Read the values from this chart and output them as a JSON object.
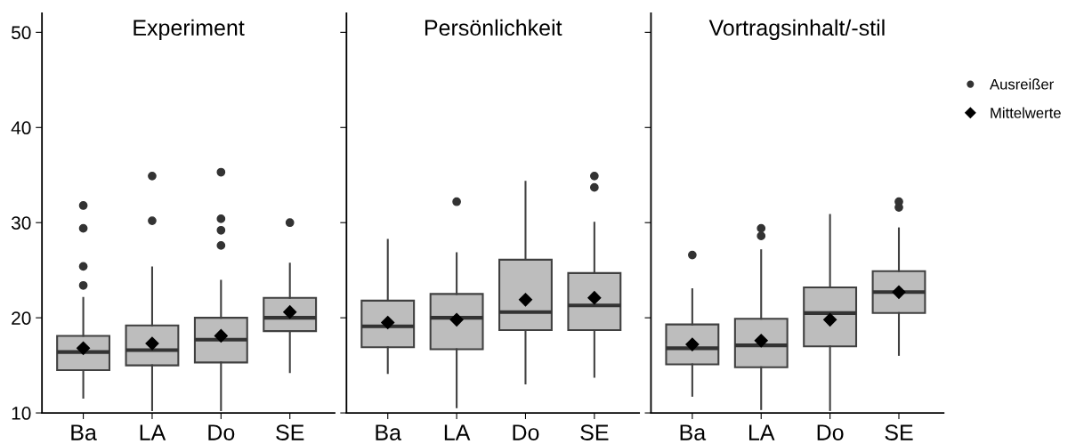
{
  "chart_data": [
    {
      "type": "box",
      "title": "Experiment",
      "categories": [
        "Ba",
        "LA",
        "Do",
        "SE"
      ],
      "ylim": [
        10,
        52
      ],
      "yticks": [
        10,
        20,
        30,
        40,
        50
      ],
      "color": "#bdbdbd",
      "grid": false,
      "boxes": [
        {
          "low": 11.6,
          "q1": 14.5,
          "median": 16.4,
          "q3": 18.1,
          "high": 22.1
        },
        {
          "low": 10.3,
          "q1": 15.0,
          "median": 16.6,
          "q3": 19.2,
          "high": 25.3
        },
        {
          "low": 10.3,
          "q1": 15.3,
          "median": 17.7,
          "q3": 20.0,
          "high": 23.9
        },
        {
          "low": 14.3,
          "q1": 18.6,
          "median": 20.0,
          "q3": 22.1,
          "high": 25.7
        }
      ],
      "series": [
        {
          "type": "scatter",
          "marker": "circle",
          "color": "#333333",
          "x": [
            "Ba",
            "Ba",
            "Ba",
            "Ba",
            "LA",
            "LA",
            "Do",
            "Do",
            "Do",
            "Do",
            "SE"
          ],
          "values": [
            31.8,
            29.4,
            25.4,
            23.4,
            34.9,
            30.2,
            35.3,
            30.4,
            29.2,
            27.6,
            30.0
          ]
        },
        {
          "type": "scatter",
          "marker": "diamond",
          "color": "#000000",
          "x": [
            "Ba",
            "LA",
            "Do",
            "SE"
          ],
          "values": [
            16.8,
            17.3,
            18.1,
            20.6
          ]
        }
      ]
    },
    {
      "type": "box",
      "title": "Persönlichkeit",
      "categories": [
        "Ba",
        "LA",
        "Do",
        "SE"
      ],
      "ylim": [
        10,
        52
      ],
      "yticks": [
        10,
        20,
        30,
        40,
        50
      ],
      "tick_labels": "x",
      "color": "#bdbdbd",
      "grid": false,
      "boxes": [
        {
          "low": 14.2,
          "q1": 16.9,
          "median": 19.1,
          "q3": 21.8,
          "high": 28.2
        },
        {
          "low": 10.6,
          "q1": 16.7,
          "median": 20.0,
          "q3": 22.5,
          "high": 26.8
        },
        {
          "low": 13.1,
          "q1": 18.7,
          "median": 20.6,
          "q3": 26.1,
          "high": 34.3
        },
        {
          "low": 13.8,
          "q1": 18.7,
          "median": 21.3,
          "q3": 24.7,
          "high": 30.0
        }
      ],
      "series": [
        {
          "type": "scatter",
          "marker": "circle",
          "color": "#333333",
          "x": [
            "LA",
            "SE",
            "SE"
          ],
          "values": [
            32.2,
            34.9,
            33.7
          ]
        },
        {
          "type": "scatter",
          "marker": "diamond",
          "color": "#000000",
          "x": [
            "Ba",
            "LA",
            "Do",
            "SE"
          ],
          "values": [
            19.5,
            19.8,
            21.9,
            22.1
          ]
        }
      ]
    },
    {
      "type": "box",
      "title": "Vortragsinhalt/-stil",
      "categories": [
        "Ba",
        "LA",
        "Do",
        "SE"
      ],
      "ylim": [
        10,
        52
      ],
      "yticks": [
        10,
        20,
        30,
        40,
        50
      ],
      "tick_labels": "x",
      "color": "#bdbdbd",
      "grid": false,
      "legend": "right",
      "boxes": [
        {
          "low": 11.8,
          "q1": 15.1,
          "median": 16.8,
          "q3": 19.3,
          "high": 23.0
        },
        {
          "low": 10.4,
          "q1": 14.8,
          "median": 17.1,
          "q3": 19.9,
          "high": 27.1
        },
        {
          "low": 10.3,
          "q1": 17.0,
          "median": 20.5,
          "q3": 23.2,
          "high": 30.8
        },
        {
          "low": 16.1,
          "q1": 20.5,
          "median": 22.7,
          "q3": 24.9,
          "high": 29.4
        }
      ],
      "series": [
        {
          "type": "scatter",
          "name": "Ausreißer",
          "marker": "circle",
          "color": "#333333",
          "x": [
            "Ba",
            "LA",
            "LA",
            "SE",
            "SE"
          ],
          "values": [
            26.6,
            29.4,
            28.6,
            32.2,
            31.6
          ]
        },
        {
          "type": "scatter",
          "name": "Mittelwerte",
          "marker": "diamond",
          "color": "#000000",
          "x": [
            "Ba",
            "LA",
            "Do",
            "SE"
          ],
          "values": [
            17.2,
            17.6,
            19.8,
            22.7
          ]
        }
      ]
    }
  ]
}
